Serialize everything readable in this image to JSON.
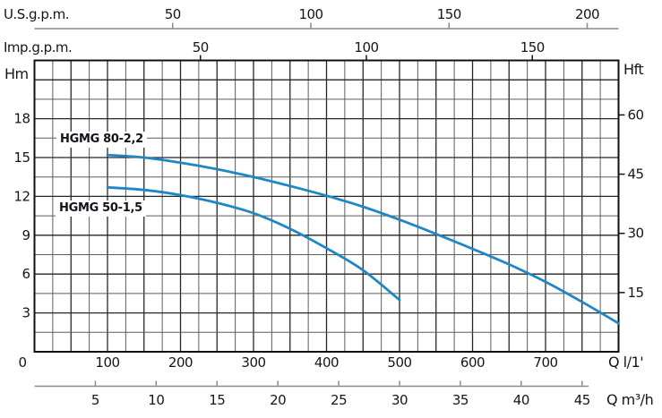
{
  "chart_data": {
    "type": "line",
    "description": "Pump performance curves: head H versus flow rate Q with four flow-unit scales and two head-unit scales",
    "axes": {
      "x_top_us": {
        "label": "U.S.g.p.m.",
        "ticks": [
          50,
          100,
          150,
          200
        ]
      },
      "x_top_imp": {
        "label": "Imp.g.p.m.",
        "ticks": [
          50,
          100,
          150
        ]
      },
      "x_bottom_primary": {
        "label": "Q l/1'",
        "ticks": [
          0,
          100,
          200,
          300,
          400,
          500,
          600,
          700
        ],
        "range": [
          0,
          800
        ],
        "grid_step": 25
      },
      "x_bottom_secondary": {
        "label": "Q m³/h",
        "ticks": [
          5,
          10,
          15,
          20,
          25,
          30,
          35,
          40,
          45
        ]
      },
      "y_left": {
        "label": "Hm",
        "ticks": [
          3,
          6,
          9,
          12,
          15,
          18
        ],
        "range": [
          0,
          22.5
        ],
        "grid_step": 1.5
      },
      "y_right": {
        "label": "Hft",
        "ticks": [
          15,
          30,
          45,
          60
        ]
      }
    },
    "grid": true,
    "legend_position": "labels-near-curves",
    "series": [
      {
        "name": "HGMG 80-2,2",
        "q_l_per_min": [
          100,
          150,
          200,
          250,
          300,
          350,
          400,
          450,
          500,
          550,
          600,
          650,
          700,
          750,
          800
        ],
        "h_m": [
          15.2,
          15.0,
          14.6,
          14.1,
          13.5,
          12.8,
          12.05,
          11.2,
          10.2,
          9.1,
          7.95,
          6.75,
          5.4,
          3.85,
          2.2
        ]
      },
      {
        "name": "HGMG 50-1,5",
        "q_l_per_min": [
          100,
          150,
          200,
          250,
          300,
          350,
          400,
          450,
          500
        ],
        "h_m": [
          12.7,
          12.5,
          12.1,
          11.5,
          10.7,
          9.5,
          8.0,
          6.3,
          4.0
        ]
      }
    ],
    "colors": {
      "curve": "#1e87c4",
      "grid_major": "#262626",
      "grid_minor": "#5c5c5c",
      "plot_border": "#111111",
      "axis_secondary": "#8a8a8a",
      "text": "#161616",
      "background": "#ffffff"
    }
  }
}
